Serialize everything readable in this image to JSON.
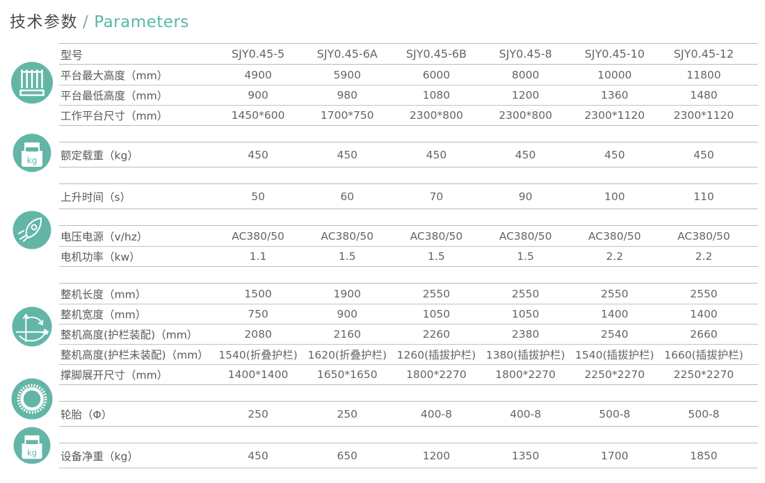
{
  "page": {
    "title_zh": "技术参数",
    "title_sep": "/",
    "title_en": "Parameters"
  },
  "colors": {
    "accent_teal": "#63B6A7",
    "title_text": "#4B4B4D",
    "table_text": "#636466",
    "label_text": "#58595B",
    "rule_line": "#B9B9B9"
  },
  "icons": {
    "kg_label": "kg",
    "rail": [
      "platform-guardrail-icon",
      "weight-kg-icon",
      "rocket-icon",
      "dimensions-axes-icon",
      "tire-gear-icon",
      "weight-kg-icon"
    ]
  },
  "table": {
    "header": {
      "label": "型号",
      "models": [
        "SJY0.45-5",
        "SJY0.45-6A",
        "SJY0.45-6B",
        "SJY0.45-8",
        "SJY0.45-10",
        "SJY0.45-12"
      ]
    },
    "sections": [
      {
        "icon": "platform-guardrail-icon",
        "rows": [
          {
            "label": "平台最大高度（mm）",
            "values": [
              "4900",
              "5900",
              "6000",
              "8000",
              "10000",
              "11800"
            ]
          },
          {
            "label": "平台最低高度（mm）",
            "values": [
              "900",
              "980",
              "1080",
              "1200",
              "1360",
              "1480"
            ]
          },
          {
            "label": "工作平台尺寸（mm）",
            "values": [
              "1450*600",
              "1700*750",
              "2300*800",
              "2300*800",
              "2300*1120",
              "2300*1120"
            ]
          }
        ]
      },
      {
        "icon": "weight-kg-icon",
        "rows": [
          {
            "label": "额定载重（kg）",
            "values": [
              "450",
              "450",
              "450",
              "450",
              "450",
              "450"
            ]
          }
        ]
      },
      {
        "icon": null,
        "rows": [
          {
            "label": "上升时间（s）",
            "values": [
              "50",
              "60",
              "70",
              "90",
              "100",
              "110"
            ]
          }
        ]
      },
      {
        "icon": "rocket-icon",
        "rows": [
          {
            "label": "电压电源（v/hz）",
            "values": [
              "AC380/50",
              "AC380/50",
              "AC380/50",
              "AC380/50",
              "AC380/50",
              "AC380/50"
            ]
          },
          {
            "label": "电机功率（kw）",
            "values": [
              "1.1",
              "1.5",
              "1.5",
              "1.5",
              "2.2",
              "2.2"
            ]
          }
        ]
      },
      {
        "icon": "dimensions-axes-icon",
        "rows": [
          {
            "label": "整机长度（mm）",
            "values": [
              "1500",
              "1900",
              "2550",
              "2550",
              "2550",
              "2550"
            ]
          },
          {
            "label": "整机宽度（mm）",
            "values": [
              "750",
              "900",
              "1050",
              "1050",
              "1400",
              "1400"
            ]
          },
          {
            "label": "整机高度(护栏装配)（mm）",
            "values": [
              "2080",
              "2160",
              "2260",
              "2380",
              "2540",
              "2660"
            ]
          },
          {
            "label": "整机高度(护栏未装配)（mm）",
            "values": [
              "1540(折叠护栏)",
              "1620(折叠护栏)",
              "1260(插拔护栏)",
              "1380(插拔护栏)",
              "1540(插拔护栏)",
              "1660(插拔护栏)"
            ]
          },
          {
            "label": "撑脚展开尺寸（mm）",
            "values": [
              "1400*1400",
              "1650*1650",
              "1800*2270",
              "1800*2270",
              "2250*2270",
              "2250*2270"
            ]
          }
        ]
      },
      {
        "icon": "tire-gear-icon",
        "rows": [
          {
            "label": "轮胎（Φ）",
            "values": [
              "250",
              "250",
              "400-8",
              "400-8",
              "500-8",
              "500-8"
            ]
          }
        ]
      },
      {
        "icon": "weight-kg-icon",
        "rows": [
          {
            "label": "设备净重（kg）",
            "values": [
              "450",
              "650",
              "1200",
              "1350",
              "1700",
              "1850"
            ]
          }
        ]
      }
    ]
  }
}
